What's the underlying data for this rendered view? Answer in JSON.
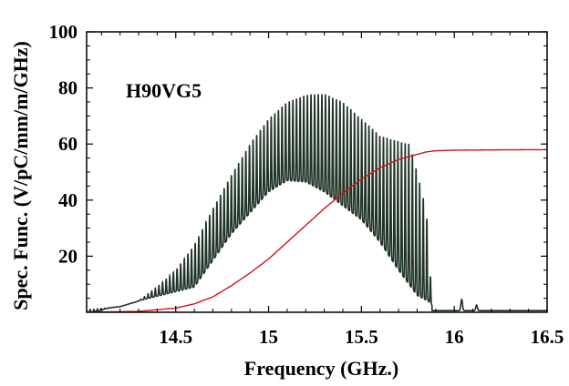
{
  "chart_data": {
    "type": "line",
    "title": "",
    "xlabel": "Frequency (GHz.)",
    "ylabel": "Spec. Func. (V/pC/mm/m/GHz)",
    "xlim": [
      14.02,
      16.5
    ],
    "ylim": [
      0,
      100
    ],
    "xticks": [
      14.5,
      15,
      15.5,
      16,
      16.5
    ],
    "xtick_labels": [
      "14.5",
      "15",
      "15.5",
      "16",
      "16.5"
    ],
    "yticks": [
      20,
      40,
      60,
      80,
      100
    ],
    "ytick_labels": [
      "20",
      "40",
      "60",
      "80",
      "100"
    ],
    "annotation": "H90VG5",
    "grid": false,
    "legend": "none",
    "series": [
      {
        "color": "#1f3326",
        "description": "oscillating spectral function with periodic narrow peaks",
        "envelope": {
          "peak_x": [
            14.05,
            14.2,
            14.3,
            14.4,
            14.5,
            14.6,
            14.7,
            14.8,
            14.9,
            15.0,
            15.1,
            15.2,
            15.3,
            15.4,
            15.5,
            15.6,
            15.7,
            15.76,
            15.8,
            15.85,
            15.88,
            16.0,
            16.04,
            16.1,
            16.2,
            16.5
          ],
          "peak_y": [
            1,
            2,
            4,
            9,
            15,
            24,
            37,
            49,
            60,
            69,
            75,
            77.5,
            78,
            75,
            69,
            63,
            61,
            60,
            50,
            36,
            4,
            3,
            4,
            2,
            1,
            1
          ],
          "trough_x": [
            14.05,
            14.6,
            14.8,
            15.0,
            15.1,
            15.2,
            15.3,
            15.4,
            15.5,
            15.6,
            15.7,
            15.8,
            15.86,
            15.9,
            16.5
          ],
          "trough_y": [
            0,
            9,
            28,
            43,
            47,
            46.5,
            43,
            38,
            33,
            25,
            15,
            6,
            4,
            1,
            0
          ]
        },
        "peak_spacing_ghz": 0.0195,
        "extra_peaks": [
          {
            "x": 16.04,
            "y": 4
          },
          {
            "x": 16.12,
            "y": 2
          }
        ]
      },
      {
        "color": "#d0141a",
        "description": "cumulative integral curve",
        "x": [
          14.02,
          14.3,
          14.5,
          14.6,
          14.7,
          14.8,
          14.9,
          15.0,
          15.1,
          15.2,
          15.3,
          15.4,
          15.5,
          15.6,
          15.7,
          15.8,
          15.85,
          15.9,
          16.0,
          16.2,
          16.5
        ],
        "y": [
          0,
          0.3,
          1.5,
          3,
          5.5,
          9.5,
          14,
          19,
          25,
          31,
          37,
          42.5,
          47.5,
          51.5,
          54.5,
          56.3,
          57.2,
          57.6,
          57.8,
          57.9,
          58
        ]
      }
    ]
  }
}
